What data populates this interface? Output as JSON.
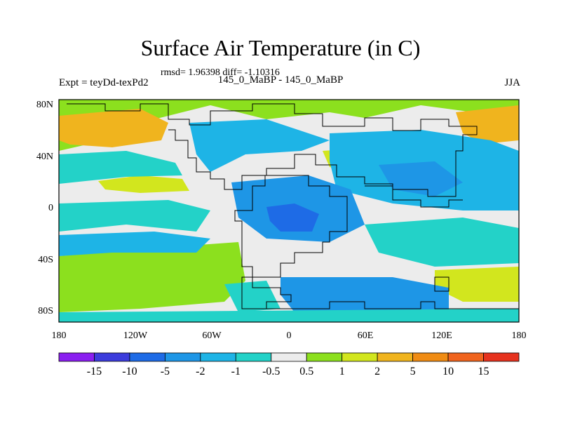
{
  "title": "Surface Air Temperature (in C)",
  "stats_line": "rmsd= 1.96398 diff= -1.10316",
  "label_left": "Expt = teyDd-texPd2",
  "label_center": "145_0_MaBP - 145_0_MaBP",
  "label_right": "JJA",
  "x_ticks": [
    "180",
    "120W",
    "60W",
    "0",
    "60E",
    "120E",
    "180"
  ],
  "y_ticks": [
    "80N",
    "40N",
    "0",
    "40S",
    "80S"
  ],
  "colorbar": {
    "labels": [
      "-15",
      "-10",
      "-5",
      "-2",
      "-1",
      "-0.5",
      "0.5",
      "1",
      "2",
      "5",
      "10",
      "15"
    ],
    "colors": [
      "#8a1ff0",
      "#3c3cdc",
      "#1e6be6",
      "#1e96e6",
      "#1eb4e6",
      "#23d2c8",
      "#ececec",
      "#8ce01e",
      "#d2e61e",
      "#f0b41e",
      "#f08c14",
      "#f0641e",
      "#e6321e"
    ]
  },
  "map_colors": {
    "neutral": "#ececec",
    "warm1": "#8ce01e",
    "warm2": "#d2e61e",
    "warm3": "#f0b41e",
    "cool1": "#23d2c8",
    "cool2": "#1eb4e6",
    "cool3": "#1e96e6",
    "cool4": "#1e6be6"
  }
}
